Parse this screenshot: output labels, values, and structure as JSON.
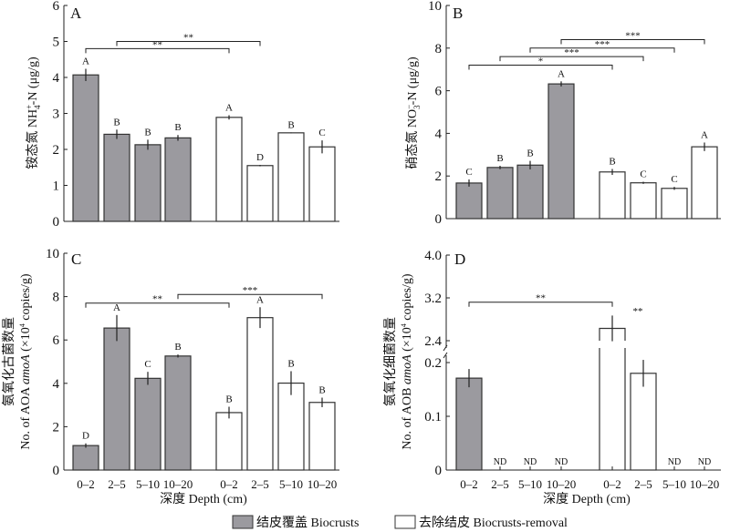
{
  "colors": {
    "biocrusts_fill": "#9b9a9f",
    "removal_fill": "#ffffff",
    "outline": "#333333"
  },
  "legend": {
    "items": [
      {
        "label": "结皮覆盖 Biocrusts",
        "fill": "#9b9a9f"
      },
      {
        "label": "去除结皮 Biocrusts-removal",
        "fill": "#ffffff"
      }
    ],
    "placement": "bottom-center"
  },
  "chart_data": [
    {
      "type": "bar",
      "panel": "A",
      "ylabel": "铵态氮 NH4+-N (μg/g)",
      "ylabel_main": "铵态氮 NH",
      "ylabel_sub": "4",
      "ylabel_sup": "+",
      "ylabel_tail": "-N (μg/g)",
      "xlabel": "",
      "ylim": [
        0,
        6
      ],
      "yticks": [
        0,
        1,
        2,
        3,
        4,
        5,
        6
      ],
      "categories": [
        "0–2",
        "2–5",
        "5–10",
        "10–20"
      ],
      "series": [
        {
          "name": "结皮覆盖 Biocrusts",
          "values": [
            4.07,
            2.42,
            2.13,
            2.32
          ],
          "errors": [
            0.17,
            0.13,
            0.14,
            0.08
          ],
          "letters": [
            "A",
            "B",
            "B",
            "B"
          ]
        },
        {
          "name": "去除结皮 Biocrusts-removal",
          "values": [
            2.89,
            1.55,
            2.46,
            2.07
          ],
          "errors": [
            0.06,
            0.02,
            0.01,
            0.18
          ],
          "letters": [
            "A",
            "D",
            "B",
            "C"
          ]
        }
      ],
      "comparisons": [
        {
          "from": [
            0,
            0
          ],
          "to": [
            1,
            0
          ],
          "y": 4.8,
          "label": "**"
        },
        {
          "from": [
            0,
            1
          ],
          "to": [
            1,
            1
          ],
          "y": 5.0,
          "label": "**"
        }
      ]
    },
    {
      "type": "bar",
      "panel": "B",
      "ylabel": "硝态氮 NO3−-N (μg/g)",
      "ylabel_main": "硝态氮 NO",
      "ylabel_sub": "3",
      "ylabel_sup": "−",
      "ylabel_tail": "-N (μg/g)",
      "xlabel": "",
      "ylim": [
        0,
        10
      ],
      "yticks": [
        0,
        2,
        4,
        6,
        8,
        10
      ],
      "categories": [
        "0–2",
        "2–5",
        "5–10",
        "10–20"
      ],
      "series": [
        {
          "name": "结皮覆盖 Biocrusts",
          "values": [
            1.67,
            2.4,
            2.51,
            6.32
          ],
          "errors": [
            0.17,
            0.08,
            0.2,
            0.12
          ],
          "letters": [
            "C",
            "B",
            "B",
            "A"
          ]
        },
        {
          "name": "去除结皮 Biocrusts-removal",
          "values": [
            2.19,
            1.68,
            1.42,
            3.37
          ],
          "errors": [
            0.14,
            0.05,
            0.07,
            0.2
          ],
          "letters": [
            "B",
            "C",
            "C",
            "A"
          ]
        }
      ],
      "comparisons": [
        {
          "from": [
            0,
            0
          ],
          "to": [
            1,
            0
          ],
          "y": 7.2,
          "label": "*"
        },
        {
          "from": [
            0,
            1
          ],
          "to": [
            1,
            1
          ],
          "y": 7.6,
          "label": "***"
        },
        {
          "from": [
            0,
            2
          ],
          "to": [
            1,
            2
          ],
          "y": 8.0,
          "label": "***"
        },
        {
          "from": [
            0,
            3
          ],
          "to": [
            1,
            3
          ],
          "y": 8.4,
          "label": "***"
        }
      ]
    },
    {
      "type": "bar",
      "panel": "C",
      "ylabel_cn": "氨氧化古菌数量",
      "ylabel": "No. of AOA amoA (×10⁴ copies/g)",
      "ylabel_pre": "No. of AOA ",
      "ylabel_italic": "amoA",
      "ylabel_post": " (×10",
      "ylabel_sup": "4",
      "ylabel_end": " copies/g)",
      "xlabel": "深度 Depth (cm)",
      "ylim": [
        0,
        10
      ],
      "yticks": [
        0,
        2,
        4,
        6,
        8,
        10
      ],
      "categories": [
        "0–2",
        "2–5",
        "5–10",
        "10–20"
      ],
      "series": [
        {
          "name": "结皮覆盖 Biocrusts",
          "values": [
            1.13,
            6.55,
            4.23,
            5.26
          ],
          "errors": [
            0.1,
            0.6,
            0.3,
            0.07
          ],
          "letters": [
            "D",
            "A",
            "C",
            "B"
          ]
        },
        {
          "name": "去除结皮 Biocrusts-removal",
          "values": [
            2.65,
            7.03,
            4.01,
            3.12
          ],
          "errors": [
            0.27,
            0.48,
            0.55,
            0.22
          ],
          "letters": [
            "B",
            "A",
            "B",
            "B"
          ]
        }
      ],
      "comparisons": [
        {
          "from": [
            0,
            0
          ],
          "to": [
            1,
            0
          ],
          "y": 7.7,
          "label": "**"
        },
        {
          "from": [
            0,
            3
          ],
          "to": [
            1,
            3
          ],
          "y": 8.1,
          "label": "***"
        }
      ]
    },
    {
      "type": "bar",
      "panel": "D",
      "ylabel_cn": "氨氧化细菌数量",
      "ylabel": "No. of AOB amoA (×10⁴ copies/g)",
      "ylabel_pre": "No. of AOB ",
      "ylabel_italic": "amoA",
      "ylabel_post": " (×10",
      "ylabel_sup": "4",
      "ylabel_end": " copies/g)",
      "xlabel": "深度 Depth (cm)",
      "ylim": [
        0,
        4.0
      ],
      "axis_break": [
        0.22,
        2.3
      ],
      "yticks_lower": [
        "0",
        "0.1",
        "0.2"
      ],
      "yticks_upper": [
        "2.4",
        "3.2",
        "4.0"
      ],
      "categories": [
        "0–2",
        "2–5",
        "5–10",
        "10–20"
      ],
      "series": [
        {
          "name": "结皮覆盖 Biocrusts",
          "values": [
            0.171,
            null,
            null,
            null
          ],
          "errors": [
            0.017,
            null,
            null,
            null
          ],
          "labels": [
            "",
            "ND",
            "ND",
            "ND"
          ]
        },
        {
          "name": "去除结皮 Biocrusts-removal",
          "values": [
            2.63,
            0.18,
            null,
            null
          ],
          "errors": [
            0.24,
            0.025,
            null,
            null
          ],
          "labels": [
            "",
            "",
            "ND",
            "ND"
          ]
        }
      ],
      "comparisons": [
        {
          "from": [
            0,
            0
          ],
          "to": [
            1,
            0
          ],
          "y": 3.12,
          "label": "**"
        }
      ],
      "annotations": [
        {
          "target": [
            1,
            0
          ],
          "label": "**"
        }
      ]
    }
  ]
}
